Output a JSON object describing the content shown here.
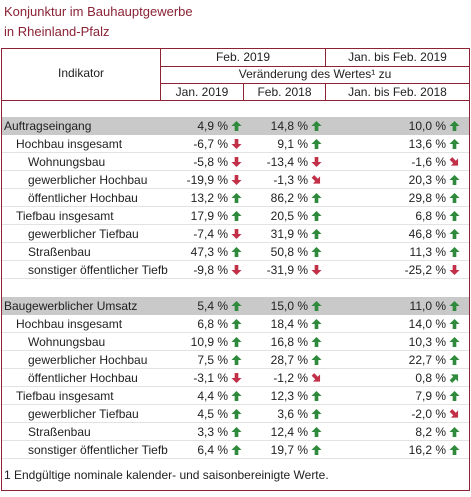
{
  "header": {
    "title": [
      "Konjunktur im Bauhauptgewerbe",
      "in Rheinland-Pfalz"
    ]
  },
  "table": {
    "columns": {
      "indicator": "Indikator",
      "period1": "Feb. 2019",
      "period2": "Jan. bis Feb. 2019",
      "change": "Veränderung des Wertes¹ zu",
      "compare": [
        "Jan. 2019",
        "Feb. 2018",
        "Jan. bis Feb. 2018"
      ]
    },
    "sections": [
      {
        "rows": [
          {
            "label": "Auftragseingang",
            "level": 0,
            "cells": [
              {
                "text": "4,9 %",
                "arrow": "up"
              },
              {
                "text": "14,8 %",
                "arrow": "up"
              },
              {
                "text": "10,0 %",
                "arrow": "up"
              }
            ]
          },
          {
            "label": "Hochbau insgesamt",
            "level": 1,
            "cells": [
              {
                "text": "-6,7 %",
                "arrow": "down"
              },
              {
                "text": "9,1 %",
                "arrow": "up"
              },
              {
                "text": "13,6 %",
                "arrow": "up"
              }
            ]
          },
          {
            "label": "Wohnungsbau",
            "level": 2,
            "cells": [
              {
                "text": "-5,8 %",
                "arrow": "down"
              },
              {
                "text": "-13,4 %",
                "arrow": "down"
              },
              {
                "text": "-1,6 %",
                "arrow": "down-right"
              }
            ]
          },
          {
            "label": "gewerblicher Hochbau",
            "level": 2,
            "cells": [
              {
                "text": "-19,9 %",
                "arrow": "down"
              },
              {
                "text": "-1,3 %",
                "arrow": "down-right"
              },
              {
                "text": "20,3 %",
                "arrow": "up"
              }
            ]
          },
          {
            "label": "öffentlicher Hochbau",
            "level": 2,
            "cells": [
              {
                "text": "13,2 %",
                "arrow": "up"
              },
              {
                "text": "86,2 %",
                "arrow": "up"
              },
              {
                "text": "29,8 %",
                "arrow": "up"
              }
            ]
          },
          {
            "label": "Tiefbau insgesamt",
            "level": 1,
            "cells": [
              {
                "text": "17,9 %",
                "arrow": "up"
              },
              {
                "text": "20,5 %",
                "arrow": "up"
              },
              {
                "text": "6,8 %",
                "arrow": "up"
              }
            ]
          },
          {
            "label": "gewerblicher Tiefbau",
            "level": 2,
            "cells": [
              {
                "text": "-7,4 %",
                "arrow": "down"
              },
              {
                "text": "31,9 %",
                "arrow": "up"
              },
              {
                "text": "46,8 %",
                "arrow": "up"
              }
            ]
          },
          {
            "label": "Straßenbau",
            "level": 2,
            "cells": [
              {
                "text": "47,3 %",
                "arrow": "up"
              },
              {
                "text": "50,8 %",
                "arrow": "up"
              },
              {
                "text": "11,3 %",
                "arrow": "up"
              }
            ]
          },
          {
            "label": "sonstiger öffentlicher Tiefb",
            "level": 2,
            "cells": [
              {
                "text": "-9,8 %",
                "arrow": "down"
              },
              {
                "text": "-31,9 %",
                "arrow": "down"
              },
              {
                "text": "-25,2 %",
                "arrow": "down"
              }
            ]
          }
        ]
      },
      {
        "rows": [
          {
            "label": "Baugewerblicher Umsatz",
            "level": 0,
            "cells": [
              {
                "text": "5,4 %",
                "arrow": "up"
              },
              {
                "text": "15,0 %",
                "arrow": "up"
              },
              {
                "text": "11,0 %",
                "arrow": "up"
              }
            ]
          },
          {
            "label": "Hochbau insgesamt",
            "level": 1,
            "cells": [
              {
                "text": "6,8 %",
                "arrow": "up"
              },
              {
                "text": "18,4 %",
                "arrow": "up"
              },
              {
                "text": "14,0 %",
                "arrow": "up"
              }
            ]
          },
          {
            "label": "Wohnungsbau",
            "level": 2,
            "cells": [
              {
                "text": "10,9 %",
                "arrow": "up"
              },
              {
                "text": "16,8 %",
                "arrow": "up"
              },
              {
                "text": "10,3 %",
                "arrow": "up"
              }
            ]
          },
          {
            "label": "gewerblicher Hochbau",
            "level": 2,
            "cells": [
              {
                "text": "7,5 %",
                "arrow": "up"
              },
              {
                "text": "28,7 %",
                "arrow": "up"
              },
              {
                "text": "22,7 %",
                "arrow": "up"
              }
            ]
          },
          {
            "label": "öffentlicher Hochbau",
            "level": 2,
            "cells": [
              {
                "text": "-3,1 %",
                "arrow": "down"
              },
              {
                "text": "-1,2 %",
                "arrow": "down-right"
              },
              {
                "text": "0,8 %",
                "arrow": "up-right"
              }
            ]
          },
          {
            "label": "Tiefbau insgesamt",
            "level": 1,
            "cells": [
              {
                "text": "4,4 %",
                "arrow": "up"
              },
              {
                "text": "12,3 %",
                "arrow": "up"
              },
              {
                "text": "7,9 %",
                "arrow": "up"
              }
            ]
          },
          {
            "label": "gewerblicher Tiefbau",
            "level": 2,
            "cells": [
              {
                "text": "4,5 %",
                "arrow": "up"
              },
              {
                "text": "3,6 %",
                "arrow": "up"
              },
              {
                "text": "-2,0 %",
                "arrow": "down-right"
              }
            ]
          },
          {
            "label": "Straßenbau",
            "level": 2,
            "cells": [
              {
                "text": "3,3 %",
                "arrow": "up"
              },
              {
                "text": "12,4 %",
                "arrow": "up"
              },
              {
                "text": "8,2 %",
                "arrow": "up"
              }
            ]
          },
          {
            "label": "sonstiger öffentlicher Tiefb",
            "level": 2,
            "cells": [
              {
                "text": "6,4 %",
                "arrow": "up"
              },
              {
                "text": "19,7 %",
                "arrow": "up"
              },
              {
                "text": "16,2 %",
                "arrow": "up"
              }
            ]
          }
        ]
      }
    ]
  },
  "footnote": "1 Endgültige nominale kalender- und saisonbereinigte Werte."
}
